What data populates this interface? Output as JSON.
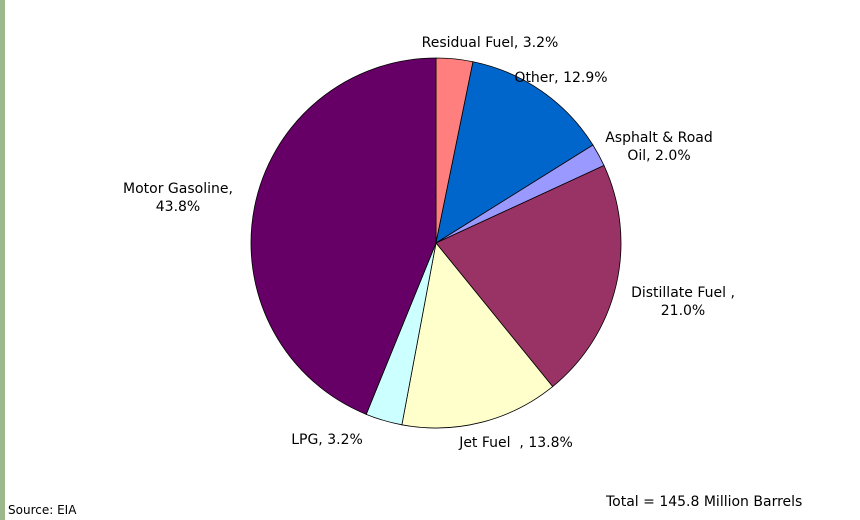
{
  "chart_data": {
    "type": "pie",
    "categories": [
      "Residual Fuel, 3.2%",
      "Other, 12.9%",
      "Asphalt & Road Oil, 2.0%",
      "Distillate Fuel , 21.0%",
      "Jet Fuel  , 13.8%",
      "LPG, 3.2%",
      "Motor Gasoline, 43.8%"
    ],
    "values": [
      3.2,
      12.9,
      2.0,
      21.0,
      13.8,
      3.2,
      43.8
    ],
    "colors": [
      "#ff7f7f",
      "#0066cc",
      "#9999ff",
      "#993366",
      "#ffffcc",
      "#ccffff",
      "#660066"
    ],
    "source": "Source: EIA",
    "annotation": "Total = 145.8 Million Barrels"
  }
}
